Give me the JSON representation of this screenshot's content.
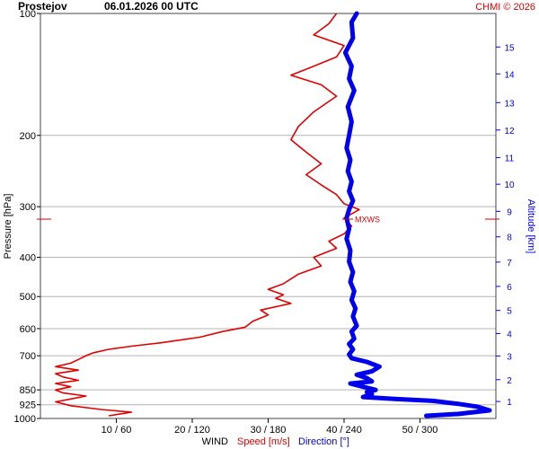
{
  "header": {
    "station": "Prostejov",
    "datetime": "06.01.2026 00 UTC",
    "credit": "CHMI © 2026"
  },
  "axes": {
    "left_label": "Pressure [hPa]",
    "right_label": "Altitude [km]",
    "bottom_prefix": "WIND",
    "bottom_speed": "Speed [m/s]",
    "bottom_direction": "Direction [°]"
  },
  "marker": {
    "label": "MXWS",
    "pressure_hpa": 322
  },
  "colors": {
    "speed": "#e00000",
    "direction": "#0000ee",
    "grid": "#b4b4b4",
    "text": "#000000",
    "credit": "#e00000"
  },
  "chart_data": {
    "type": "line",
    "title": "Prostejov 06.01.2026 00 UTC",
    "ylabel": "Pressure [hPa]",
    "y2label": "Altitude [km]",
    "ylim": [
      1000,
      100
    ],
    "y_scale": "log",
    "xlabel": "WIND Speed [m/s] Direction [°]",
    "pressure_ticks": [
      100,
      200,
      300,
      400,
      500,
      600,
      700,
      850,
      925,
      1000
    ],
    "altitude_ticks": [
      1,
      2,
      3,
      4,
      5,
      6,
      7,
      8,
      9,
      10,
      11,
      12,
      13,
      14,
      15
    ],
    "altitude_pressure_hpa": [
      908,
      802,
      701,
      617,
      541,
      472,
      411,
      356,
      308,
      264,
      227,
      194,
      166,
      141,
      121
    ],
    "x_tick_labels": [
      "10 / 60",
      "20 / 120",
      "30 / 180",
      "40 / 240",
      "50 / 300"
    ],
    "speed_xlim": [
      0,
      60
    ],
    "direction_xlim": [
      0,
      360
    ],
    "series": [
      {
        "name": "Speed [m/s]",
        "unit": "m/s",
        "points": [
          [
            9,
            985
          ],
          [
            12,
            965
          ],
          [
            8,
            950
          ],
          [
            4,
            930
          ],
          [
            2,
            910
          ],
          [
            4,
            895
          ],
          [
            6,
            880
          ],
          [
            3,
            865
          ],
          [
            2,
            850
          ],
          [
            4,
            835
          ],
          [
            2,
            820
          ],
          [
            5,
            805
          ],
          [
            3,
            790
          ],
          [
            2,
            775
          ],
          [
            5,
            760
          ],
          [
            2,
            745
          ],
          [
            4,
            730
          ],
          [
            5,
            715
          ],
          [
            6,
            700
          ],
          [
            7,
            688
          ],
          [
            9,
            675
          ],
          [
            12,
            663
          ],
          [
            16,
            650
          ],
          [
            21,
            630
          ],
          [
            24,
            610
          ],
          [
            27,
            595
          ],
          [
            28,
            575
          ],
          [
            30,
            555
          ],
          [
            29,
            540
          ],
          [
            33,
            520
          ],
          [
            31,
            505
          ],
          [
            32,
            495
          ],
          [
            30,
            480
          ],
          [
            32,
            465
          ],
          [
            34,
            440
          ],
          [
            37,
            420
          ],
          [
            36,
            400
          ],
          [
            39,
            380
          ],
          [
            38,
            365
          ],
          [
            40,
            350
          ],
          [
            41,
            335
          ],
          [
            40,
            320
          ],
          [
            42,
            305
          ],
          [
            40,
            295
          ],
          [
            39,
            280
          ],
          [
            37,
            265
          ],
          [
            35,
            250
          ],
          [
            37,
            235
          ],
          [
            35,
            220
          ],
          [
            33,
            205
          ],
          [
            34,
            190
          ],
          [
            36,
            175
          ],
          [
            39,
            160
          ],
          [
            37,
            150
          ],
          [
            33,
            142
          ],
          [
            36,
            135
          ],
          [
            39,
            128
          ],
          [
            40,
            120
          ],
          [
            36,
            113
          ],
          [
            38,
            106
          ],
          [
            39,
            100
          ]
        ]
      },
      {
        "name": "Direction [°]",
        "unit": "deg",
        "points": [
          [
            305,
            985
          ],
          [
            330,
            975
          ],
          [
            355,
            955
          ],
          [
            345,
            935
          ],
          [
            330,
            920
          ],
          [
            310,
            905
          ],
          [
            280,
            895
          ],
          [
            255,
            885
          ],
          [
            262,
            870
          ],
          [
            258,
            860
          ],
          [
            265,
            850
          ],
          [
            255,
            835
          ],
          [
            245,
            820
          ],
          [
            262,
            810
          ],
          [
            258,
            795
          ],
          [
            250,
            780
          ],
          [
            262,
            765
          ],
          [
            268,
            745
          ],
          [
            258,
            725
          ],
          [
            246,
            710
          ],
          [
            244,
            695
          ],
          [
            247,
            675
          ],
          [
            244,
            655
          ],
          [
            248,
            635
          ],
          [
            246,
            610
          ],
          [
            250,
            590
          ],
          [
            247,
            560
          ],
          [
            249,
            535
          ],
          [
            246,
            510
          ],
          [
            248,
            485
          ],
          [
            245,
            460
          ],
          [
            247,
            435
          ],
          [
            244,
            410
          ],
          [
            245,
            385
          ],
          [
            242,
            360
          ],
          [
            244,
            340
          ],
          [
            242,
            320
          ],
          [
            244,
            305
          ],
          [
            247,
            290
          ],
          [
            244,
            275
          ],
          [
            246,
            260
          ],
          [
            243,
            245
          ],
          [
            245,
            230
          ],
          [
            242,
            215
          ],
          [
            244,
            200
          ],
          [
            246,
            185
          ],
          [
            243,
            170
          ],
          [
            248,
            155
          ],
          [
            244,
            145
          ],
          [
            246,
            135
          ],
          [
            241,
            125
          ],
          [
            247,
            115
          ],
          [
            246,
            105
          ],
          [
            250,
            100
          ]
        ]
      }
    ]
  }
}
